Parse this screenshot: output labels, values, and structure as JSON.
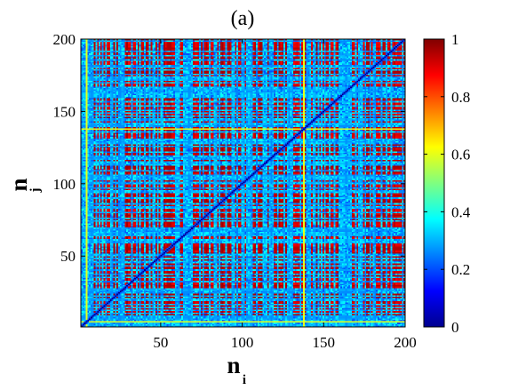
{
  "chart_data": {
    "type": "heatmap",
    "title": "(a)",
    "xlabel": "n",
    "xlabel_subscript": "i",
    "ylabel": "n",
    "ylabel_subscript": "j",
    "xlim": [
      1,
      200
    ],
    "ylim": [
      1,
      200
    ],
    "x_ticks": [
      50,
      100,
      150,
      200
    ],
    "y_ticks": [
      50,
      100,
      150,
      200
    ],
    "matrix_size": 200,
    "colormap": "jet",
    "colorbar": {
      "range": [
        0,
        1
      ],
      "ticks": [
        "0",
        "0.2",
        "0.4",
        "0.6",
        "0.8",
        "1"
      ],
      "tick_values": [
        0,
        0.2,
        0.4,
        0.6,
        0.8,
        1
      ]
    },
    "pattern": {
      "diagonal_value": 0,
      "typical_high_value": 0.95,
      "typical_low_value": 0.35,
      "bright_row_col_indices": [
        3,
        137
      ],
      "bright_value": 0.6
    },
    "colors": {
      "jet_stops": [
        "#00008f",
        "#0000ff",
        "#00ffff",
        "#ffff00",
        "#ff0000",
        "#800000"
      ]
    }
  }
}
